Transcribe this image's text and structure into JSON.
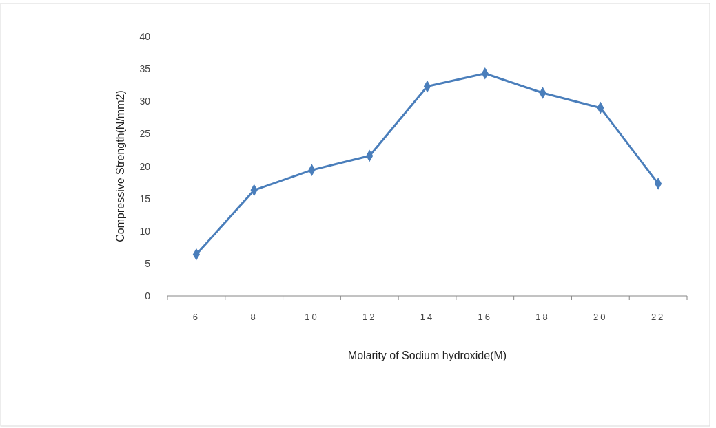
{
  "chart_data": {
    "type": "line",
    "xlabel": "Molarity of Sodium hydroxide(M)",
    "ylabel": "Compressive Strength(N/mm2)",
    "categories": [
      "6",
      "8",
      "10",
      "12",
      "14",
      "16",
      "18",
      "20",
      "22"
    ],
    "series": [
      {
        "color": "#4a7ebb",
        "values": [
          6.4,
          16.3,
          19.4,
          21.6,
          32.3,
          34.3,
          31.3,
          29.0,
          17.3
        ]
      }
    ],
    "ylim": [
      0,
      40
    ],
    "yticks": [
      0,
      5,
      10,
      15,
      20,
      25,
      30,
      35,
      40
    ],
    "grid": false,
    "marker": "diamond",
    "line_style": "solid"
  }
}
